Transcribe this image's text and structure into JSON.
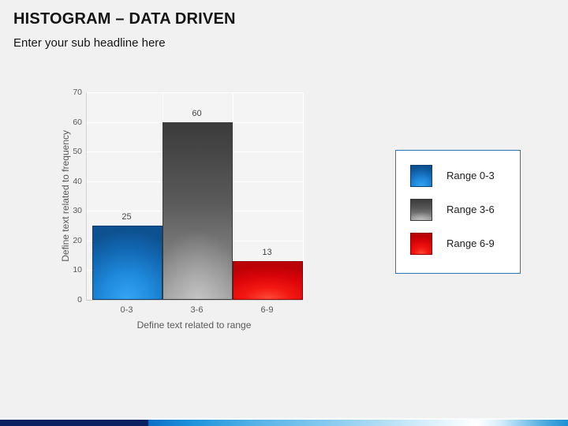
{
  "slide": {
    "title": "HISTOGRAM – DATA DRIVEN",
    "subtitle": "Enter your sub headline here"
  },
  "chart_data": {
    "type": "bar",
    "title": "",
    "categories": [
      "0-3",
      "3-6",
      "6-9"
    ],
    "values": [
      25,
      60,
      13
    ],
    "data_labels": [
      "25",
      "60",
      "13"
    ],
    "color_keys": [
      "blue",
      "gray",
      "red"
    ],
    "colors": [
      "#1268B3",
      "#6F6F6F",
      "#D90409"
    ],
    "xlabel": "Define text related to range",
    "ylabel": "Define text related to frequency",
    "ylim": [
      0,
      70
    ],
    "yticks": [
      0,
      10,
      20,
      30,
      40,
      50,
      60,
      70
    ],
    "grid": true,
    "legend_position": "right"
  },
  "legend": {
    "border_color": "#2E74B5",
    "items": [
      {
        "label": "Range 0-3",
        "key": "blue",
        "color": "#1268B3"
      },
      {
        "label": "Range 3-6",
        "key": "gray",
        "color": "#6F6F6F"
      },
      {
        "label": "Range 6-9",
        "key": "red",
        "color": "#D90409"
      }
    ]
  },
  "footer": {
    "gradient_colors": [
      "#0A2060",
      "#0C6FC4",
      "#FFFFFF",
      "#1E8FD2"
    ]
  }
}
